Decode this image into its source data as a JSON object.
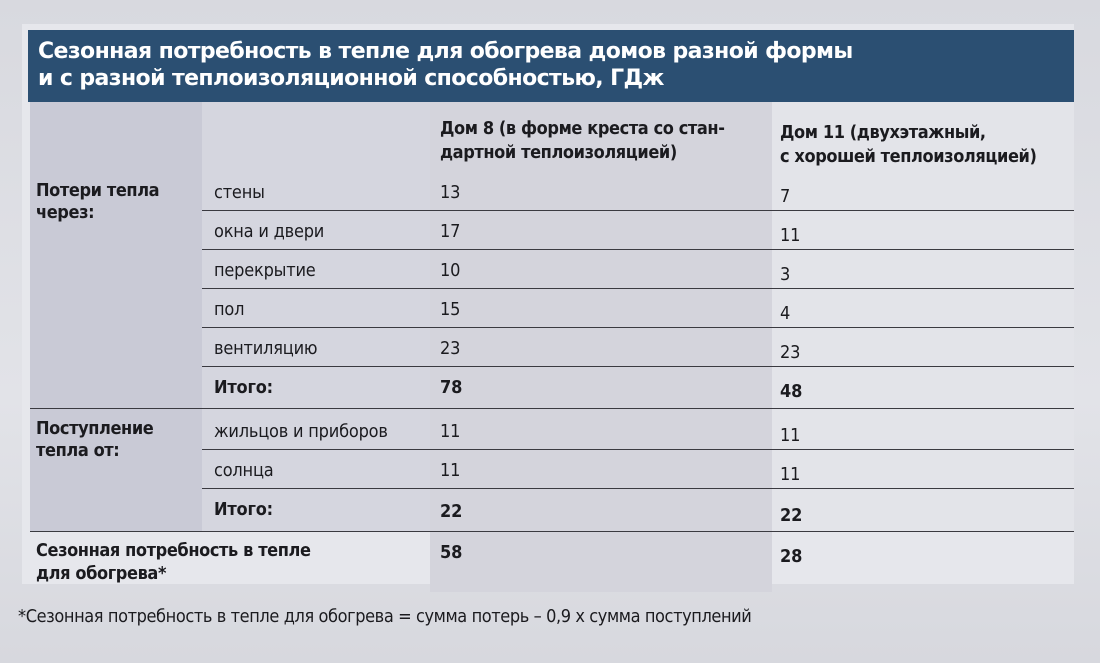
{
  "title": {
    "line1": "Сезонная потребность в тепле для обогрева домов разной формы",
    "line2": "и с разной теплоизоляционной способностью, ГДж"
  },
  "columns": {
    "house8_line1": "Дом 8 (в форме креста со стан-",
    "house8_line2": "дартной теплоизоляцией)",
    "house11_line1": "Дом 11 (двухэтажный,",
    "house11_line2": "с хорошей теплоизоляцией)"
  },
  "losses": {
    "group_line1": "Потери тепла",
    "group_line2": "через:",
    "rows": [
      {
        "label": "стены",
        "h8": "13",
        "h11": "7"
      },
      {
        "label": "окна и двери",
        "h8": "17",
        "h11": "11"
      },
      {
        "label": "перекрытие",
        "h8": "10",
        "h11": "3"
      },
      {
        "label": "пол",
        "h8": "15",
        "h11": "4"
      },
      {
        "label": "вентиляцию",
        "h8": "23",
        "h11": "23"
      }
    ],
    "total": {
      "label": "Итого:",
      "h8": "78",
      "h11": "48"
    }
  },
  "gains": {
    "group_line1": "Поступление",
    "group_line2": "тепла от:",
    "rows": [
      {
        "label": "жильцов и приборов",
        "h8": "11",
        "h11": "11"
      },
      {
        "label": "солнца",
        "h8": "11",
        "h11": "11"
      }
    ],
    "total": {
      "label": "Итого:",
      "h8": "22",
      "h11": "22"
    }
  },
  "demand": {
    "label_line1": "Сезонная потребность в тепле",
    "label_line2": "для обогрева*",
    "h8": "58",
    "h11": "28"
  },
  "footnote": "*Сезонная потребность в тепле для обогрева = сумма потерь – 0,9 x сумма поступлений",
  "colors": {
    "title_bar": "#2b4f72",
    "title_text": "#ffffff"
  }
}
